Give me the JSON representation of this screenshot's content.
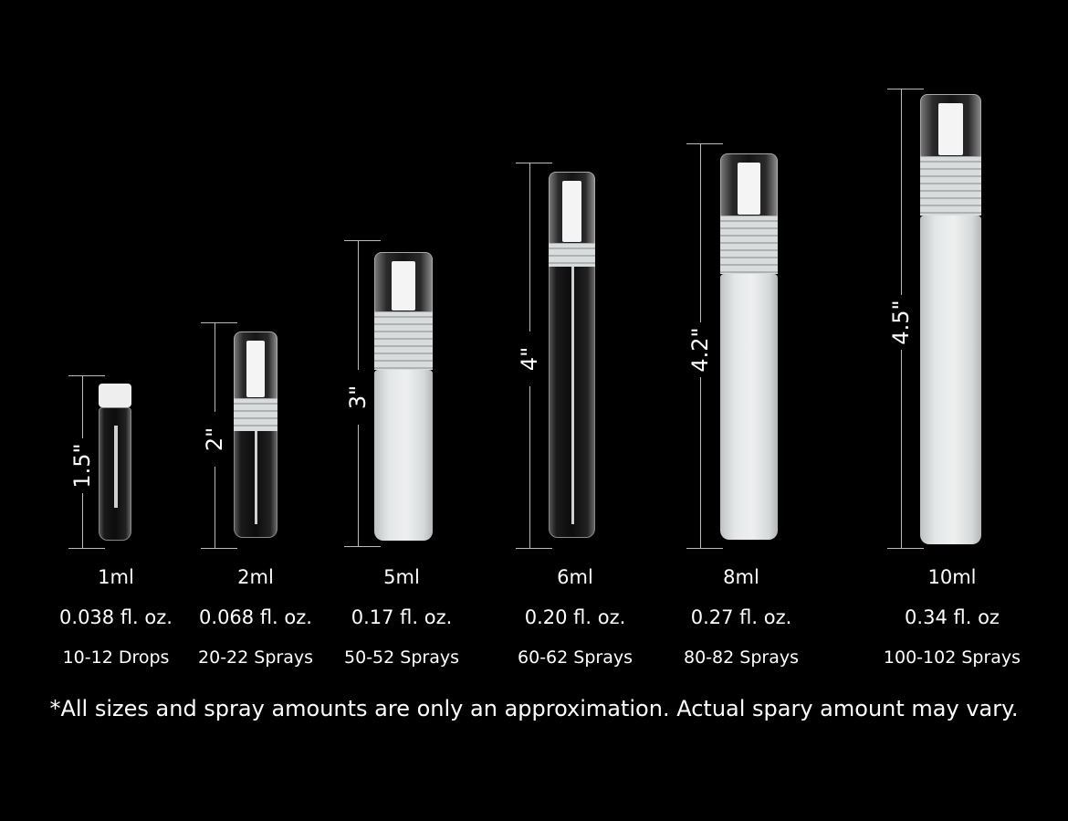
{
  "items": [
    {
      "height": "1.5\"",
      "volume": "1ml",
      "fl_oz": "0.038 fl. oz.",
      "sprays": "10-12 Drops",
      "finish": "clear",
      "type": "vial"
    },
    {
      "height": "2\"",
      "volume": "2ml",
      "fl_oz": "0.068 fl. oz.",
      "sprays": "20-22 Sprays",
      "finish": "clear",
      "type": "spray"
    },
    {
      "height": "3\"",
      "volume": "5ml",
      "fl_oz": "0.17 fl. oz.",
      "sprays": "50-52 Sprays",
      "finish": "frosted",
      "type": "spray"
    },
    {
      "height": "4\"",
      "volume": "6ml",
      "fl_oz": "0.20 fl. oz.",
      "sprays": "60-62 Sprays",
      "finish": "clear",
      "type": "spray"
    },
    {
      "height": "4.2\"",
      "volume": "8ml",
      "fl_oz": "0.27 fl. oz.",
      "sprays": "80-82 Sprays",
      "finish": "frosted",
      "type": "spray"
    },
    {
      "height": "4.5\"",
      "volume": "10ml",
      "fl_oz": "0.34 fl. oz",
      "sprays": "100-102 Sprays",
      "finish": "frosted",
      "type": "spray"
    }
  ],
  "footnote": "*All sizes and spray amounts are only an approximation. Actual spary amount may vary."
}
